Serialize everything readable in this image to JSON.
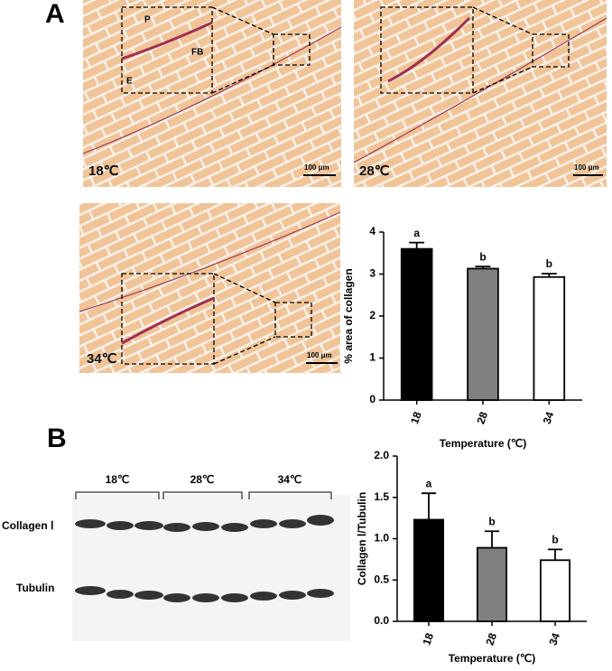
{
  "panels": [
    "A",
    "B"
  ],
  "micrographs": [
    {
      "label": "18℃",
      "scale": "100 μm"
    },
    {
      "label": "28℃",
      "scale": "100 μm"
    },
    {
      "label": "34℃",
      "scale": "100 μm"
    }
  ],
  "markers": [
    "P",
    "FB",
    "E"
  ],
  "blot": {
    "lanes": [
      "18℃",
      "28℃",
      "34℃"
    ],
    "rows": [
      "Collagen Ⅰ",
      "Tubulin"
    ]
  },
  "chart_data": [
    {
      "type": "bar",
      "y_label": "% area of collagen",
      "x_label": "Temperature (℃)",
      "categories": [
        "18",
        "28",
        "34"
      ],
      "values": [
        3.6,
        3.13,
        2.93
      ],
      "errors": [
        0.15,
        0.05,
        0.08
      ],
      "annotations": [
        "a",
        "b",
        "b"
      ],
      "colors": [
        "#000000",
        "#808080",
        "#ffffff"
      ],
      "ylim": [
        0,
        4
      ],
      "yticks": [
        0,
        1,
        2,
        3,
        4
      ]
    },
    {
      "type": "bar",
      "y_label": "Collagen Ⅰ/Tubulin",
      "x_label": "Temperature (℃)",
      "categories": [
        "18",
        "28",
        "34"
      ],
      "values": [
        1.23,
        0.89,
        0.74
      ],
      "errors": [
        0.32,
        0.2,
        0.13
      ],
      "annotations": [
        "a",
        "b",
        "b"
      ],
      "colors": [
        "#000000",
        "#808080",
        "#ffffff"
      ],
      "ylim": [
        0,
        2
      ],
      "yticks": [
        {
          "value": 0,
          "label": "0.0"
        },
        {
          "value": 0.5,
          "label": "0.5"
        },
        {
          "value": 1,
          "label": "1.0"
        },
        {
          "value": 1.5,
          "label": "1.5"
        },
        {
          "value": 2,
          "label": "2.0"
        }
      ]
    }
  ]
}
